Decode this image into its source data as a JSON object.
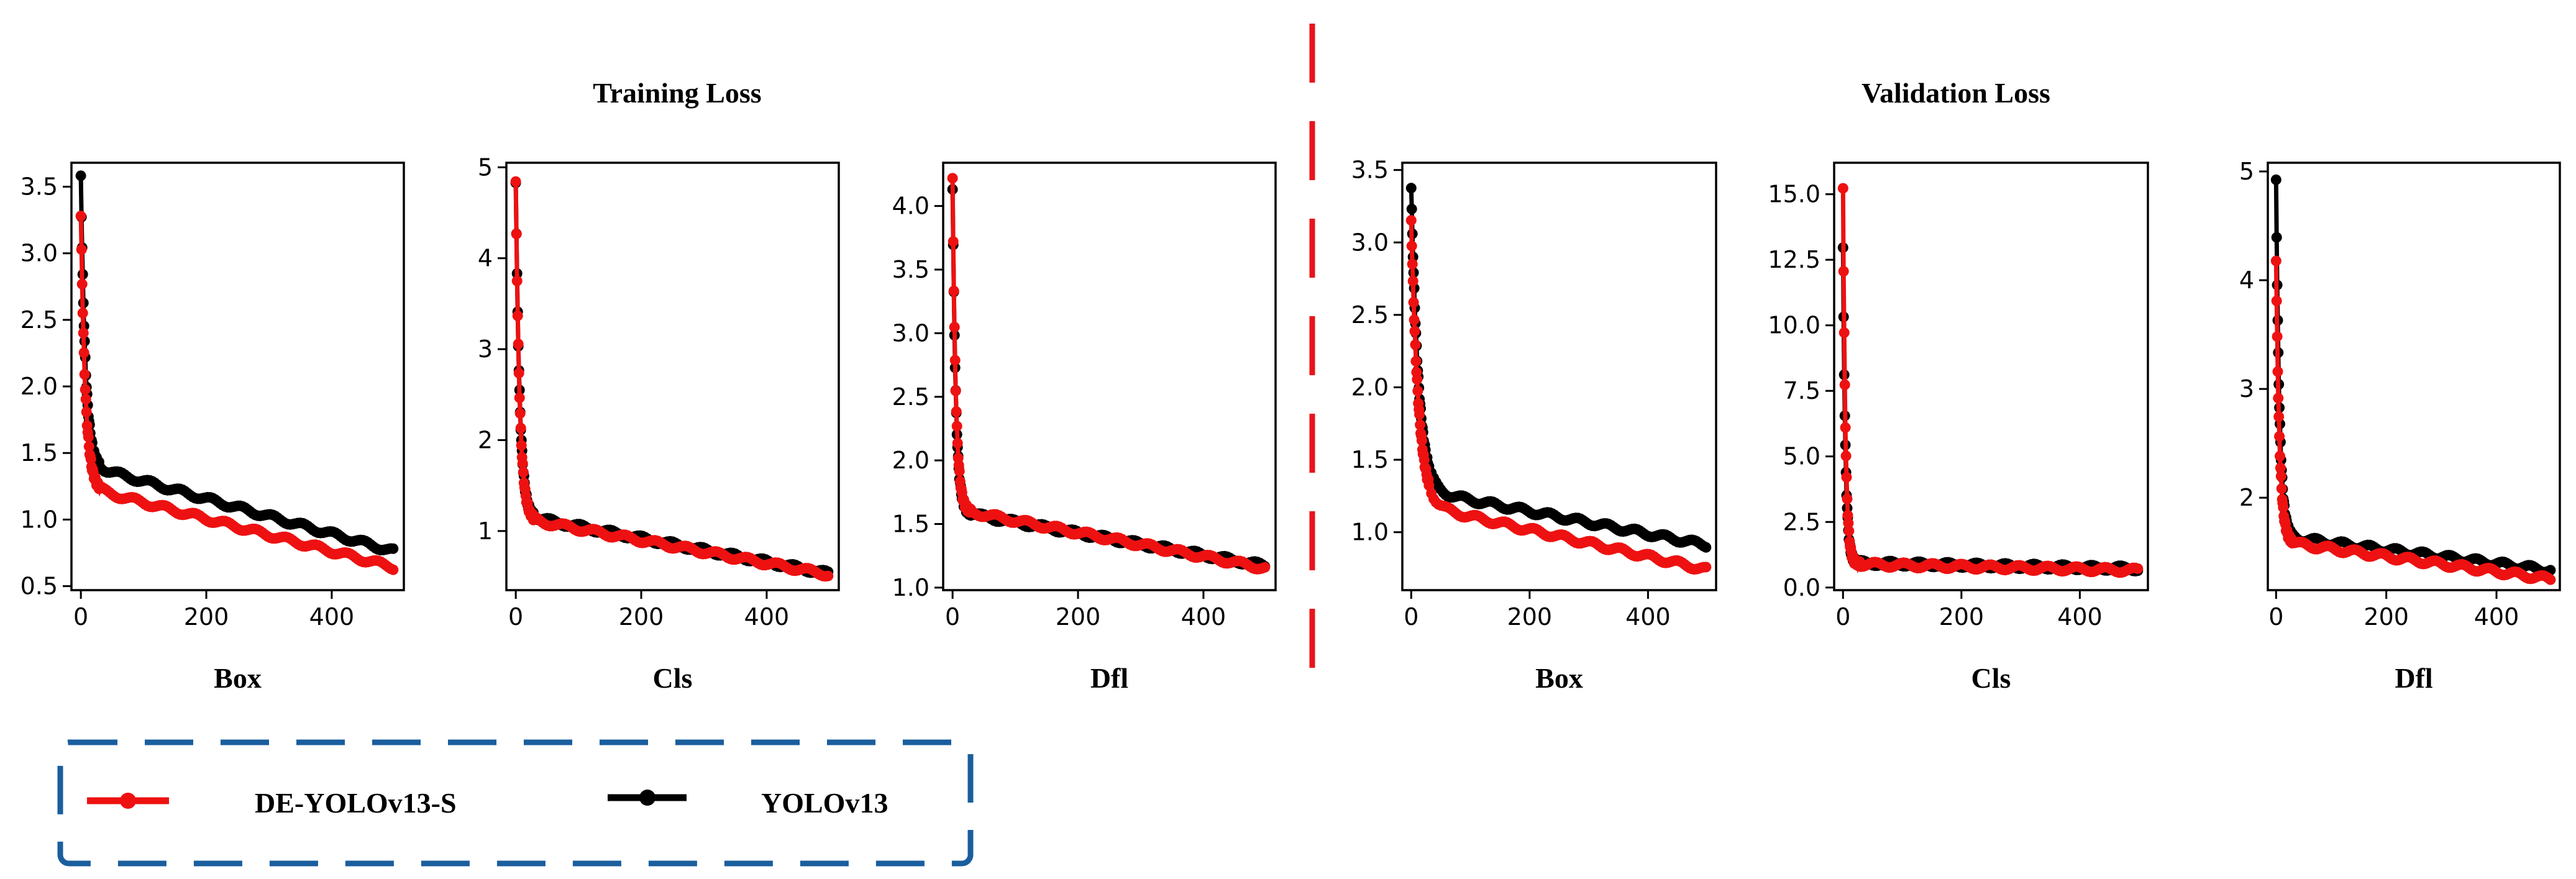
{
  "figure": {
    "group_titles": [
      "Training Loss",
      "Validation Loss"
    ],
    "colors": {
      "de_yolo": "#ee1111",
      "yolo": "#000000",
      "divider": "#e8141a",
      "legend_border": "#1a5e9e"
    }
  },
  "legend": {
    "entries": [
      {
        "label": "DE-YOLOv13-S",
        "color": "#ee1111"
      },
      {
        "label": "YOLOv13",
        "color": "#000000"
      }
    ]
  },
  "chart_data": [
    {
      "type": "line",
      "group": "Training Loss",
      "xlabel": "Box",
      "xlim": [
        -15,
        515
      ],
      "ylim": [
        0.47,
        3.68
      ],
      "xticks": [
        0,
        200,
        400
      ],
      "yticks": [
        0.5,
        1.0,
        1.5,
        2.0,
        2.5,
        3.0,
        3.5
      ],
      "ytick_labels": [
        "0.5",
        "1.0",
        "1.5",
        "2.0",
        "2.5",
        "3.0",
        "3.5"
      ],
      "series": [
        {
          "name": "DE-YOLOv13-S",
          "start": 3.28,
          "mid": 1.25,
          "end": 0.64,
          "tau": 7
        },
        {
          "name": "YOLOv13",
          "start": 3.58,
          "mid": 1.42,
          "end": 0.76,
          "tau": 7
        }
      ]
    },
    {
      "type": "line",
      "group": "Training Loss",
      "xlabel": "Cls",
      "xlim": [
        -15,
        515
      ],
      "ylim": [
        0.35,
        5.05
      ],
      "xticks": [
        0,
        200,
        400
      ],
      "yticks": [
        1,
        2,
        3,
        4,
        5
      ],
      "ytick_labels": [
        "1",
        "2",
        "3",
        "4",
        "5"
      ],
      "series": [
        {
          "name": "DE-YOLOv13-S",
          "start": 4.82,
          "mid": 1.15,
          "end": 0.52,
          "tau": 6
        },
        {
          "name": "YOLOv13",
          "start": 4.85,
          "mid": 1.18,
          "end": 0.53,
          "tau": 6
        }
      ]
    },
    {
      "type": "line",
      "group": "Training Loss",
      "xlabel": "Dfl",
      "xlim": [
        -15,
        515
      ],
      "ylim": [
        0.98,
        4.34
      ],
      "xticks": [
        0,
        200,
        400
      ],
      "yticks": [
        1.0,
        1.5,
        2.0,
        2.5,
        3.0,
        3.5,
        4.0
      ],
      "ytick_labels": [
        "1.0",
        "1.5",
        "2.0",
        "2.5",
        "3.0",
        "3.5",
        "4.0"
      ],
      "series": [
        {
          "name": "DE-YOLOv13-S",
          "start": 4.2,
          "mid": 1.62,
          "end": 1.15,
          "tau": 5
        },
        {
          "name": "YOLOv13",
          "start": 4.15,
          "mid": 1.6,
          "end": 1.17,
          "tau": 5
        }
      ]
    },
    {
      "type": "line",
      "group": "Validation Loss",
      "xlabel": "Box",
      "xlim": [
        -15,
        515
      ],
      "ylim": [
        0.6,
        3.55
      ],
      "xticks": [
        0,
        200,
        400
      ],
      "yticks": [
        1.0,
        1.5,
        2.0,
        2.5,
        3.0,
        3.5
      ],
      "ytick_labels": [
        "1.0",
        "1.5",
        "2.0",
        "2.5",
        "3.0",
        "3.5"
      ],
      "series": [
        {
          "name": "DE-YOLOv13-S",
          "start": 3.15,
          "mid": 1.2,
          "end": 0.74,
          "tau": 12
        },
        {
          "name": "YOLOv13",
          "start": 3.38,
          "mid": 1.3,
          "end": 0.91,
          "tau": 12
        }
      ]
    },
    {
      "type": "line",
      "group": "Validation Loss",
      "xlabel": "Cls",
      "xlim": [
        -15,
        515
      ],
      "ylim": [
        -0.1,
        16.2
      ],
      "xticks": [
        0,
        200,
        400
      ],
      "yticks": [
        0.0,
        2.5,
        5.0,
        7.5,
        10.0,
        12.5,
        15.0
      ],
      "ytick_labels": [
        "0.0",
        "2.5",
        "5.0",
        "7.5",
        "10.0",
        "12.5",
        "15.0"
      ],
      "series": [
        {
          "name": "DE-YOLOv13-S",
          "start": 15.3,
          "mid": 0.9,
          "end": 0.65,
          "tau": 4
        },
        {
          "name": "YOLOv13",
          "start": 12.9,
          "mid": 0.95,
          "end": 0.72,
          "tau": 4
        }
      ]
    },
    {
      "type": "line",
      "group": "Validation Loss",
      "xlabel": "Dfl",
      "xlim": [
        -15,
        515
      ],
      "ylim": [
        1.15,
        5.08
      ],
      "xticks": [
        0,
        200,
        400
      ],
      "yticks": [
        2,
        3,
        4,
        5
      ],
      "ytick_labels": [
        "2",
        "3",
        "4",
        "5"
      ],
      "series": [
        {
          "name": "DE-YOLOv13-S",
          "start": 4.2,
          "mid": 1.6,
          "end": 1.25,
          "tau": 6
        },
        {
          "name": "YOLOv13",
          "start": 4.9,
          "mid": 1.65,
          "end": 1.33,
          "tau": 6
        }
      ]
    }
  ]
}
